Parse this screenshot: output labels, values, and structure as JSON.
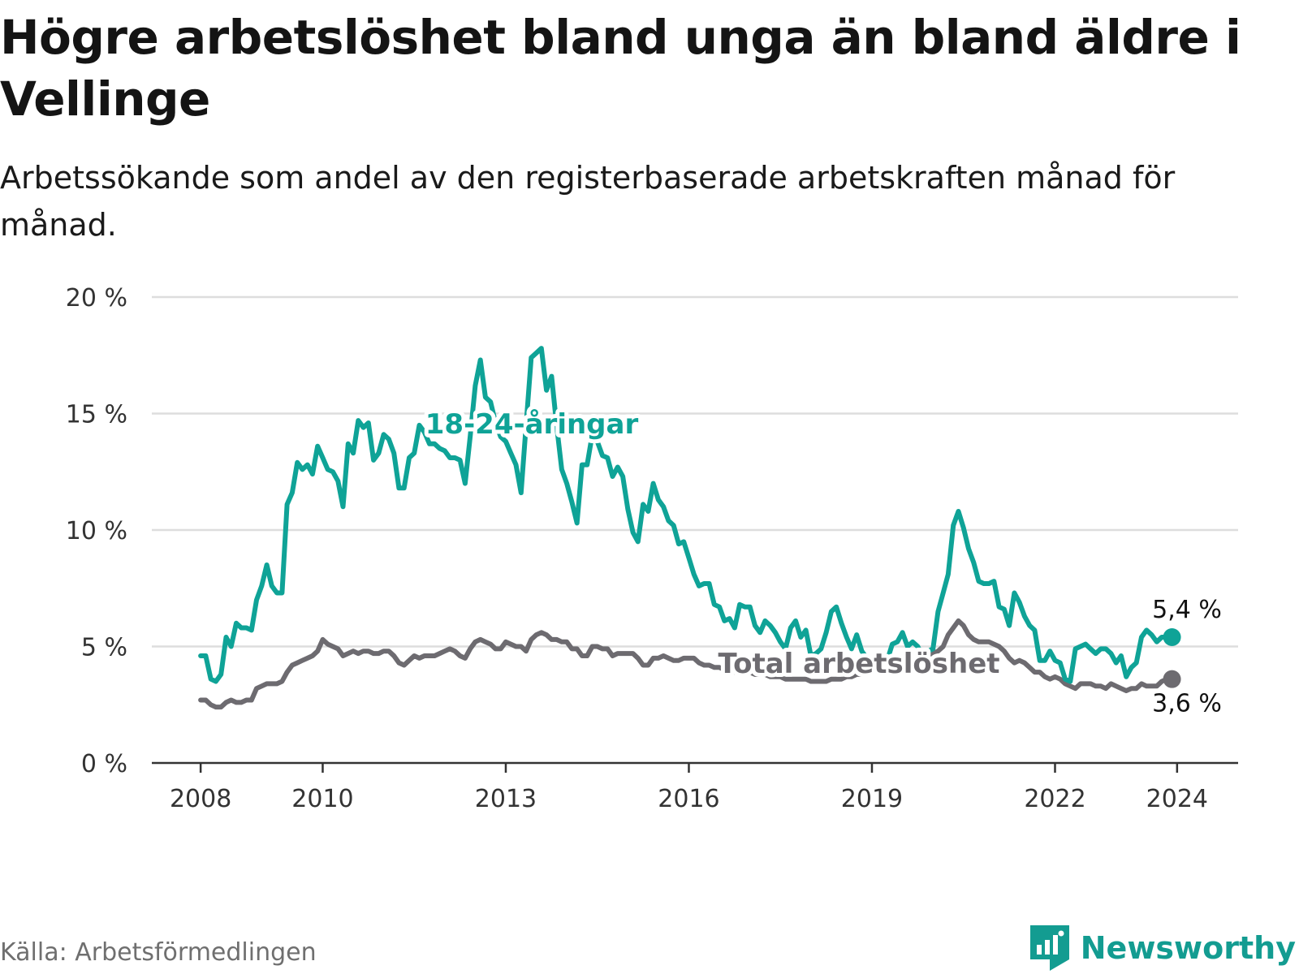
{
  "header": {
    "title": "Högre arbetslöshet bland unga än bland äldre i Vellinge",
    "subtitle": "Arbetssökande som andel av den registerbaserade arbetskraften månad för månad."
  },
  "footer": {
    "source": "Källa: Arbetsförmedlingen",
    "brand": "Newsworthy"
  },
  "colors": {
    "youth": "#0fa397",
    "total": "#6d6b70",
    "grid": "#dddddd",
    "axis": "#333333",
    "brand": "#139c91"
  },
  "chart_data": {
    "type": "line",
    "title": "Högre arbetslöshet bland unga än bland äldre i Vellinge",
    "xlabel": "",
    "ylabel": "",
    "x_start": 2008.0,
    "x_step_months": 1,
    "xlim": [
      2007.2,
      2025.0
    ],
    "ylim": [
      0,
      20
    ],
    "y_ticks": [
      0,
      5,
      10,
      15,
      20
    ],
    "y_tick_labels": [
      "0 %",
      "5 %",
      "10 %",
      "15 %",
      "20 %"
    ],
    "x_ticks": [
      2008,
      2010,
      2013,
      2016,
      2019,
      2022,
      2024
    ],
    "x_tick_labels": [
      "2008",
      "2010",
      "2013",
      "2016",
      "2019",
      "2022",
      "2024"
    ],
    "grid": true,
    "series": [
      {
        "name": "18-24-åringar",
        "label": "18-24-åringar",
        "color_key": "youth",
        "end_label": "5,4 %",
        "values": [
          4.6,
          4.6,
          3.6,
          3.5,
          3.8,
          5.4,
          5.0,
          6.0,
          5.8,
          5.8,
          5.7,
          7.0,
          7.6,
          8.5,
          7.6,
          7.3,
          7.3,
          11.1,
          11.6,
          12.9,
          12.6,
          12.8,
          12.4,
          13.6,
          13.1,
          12.6,
          12.5,
          12.1,
          11.0,
          13.7,
          13.3,
          14.7,
          14.4,
          14.6,
          13.0,
          13.3,
          14.1,
          13.9,
          13.3,
          11.8,
          11.8,
          13.1,
          13.3,
          14.5,
          14.2,
          13.7,
          13.7,
          13.5,
          13.4,
          13.1,
          13.1,
          13.0,
          12.0,
          14.0,
          16.2,
          17.3,
          15.7,
          15.5,
          14.6,
          14.0,
          13.8,
          13.3,
          12.8,
          11.6,
          14.5,
          17.4,
          17.6,
          17.8,
          16.0,
          16.6,
          14.5,
          12.6,
          12.0,
          11.2,
          10.3,
          12.8,
          12.8,
          14.1,
          13.8,
          13.2,
          13.1,
          12.3,
          12.7,
          12.3,
          10.9,
          9.9,
          9.5,
          11.1,
          10.8,
          12.0,
          11.3,
          11.0,
          10.4,
          10.2,
          9.4,
          9.5,
          8.8,
          8.1,
          7.6,
          7.7,
          7.7,
          6.8,
          6.7,
          6.1,
          6.2,
          5.8,
          6.8,
          6.7,
          6.7,
          5.9,
          5.6,
          6.1,
          5.9,
          5.6,
          5.2,
          4.9,
          5.8,
          6.1,
          5.4,
          5.7,
          4.6,
          4.7,
          4.9,
          5.6,
          6.5,
          6.7,
          6.0,
          5.4,
          4.9,
          5.5,
          4.8,
          4.5,
          4.5,
          4.6,
          4.5,
          4.4,
          5.1,
          5.2,
          5.6,
          5.0,
          5.2,
          5.0,
          4.6,
          4.8,
          4.9,
          6.5,
          7.3,
          8.1,
          10.2,
          10.8,
          10.1,
          9.2,
          8.6,
          7.8,
          7.7,
          7.7,
          7.8,
          6.7,
          6.6,
          5.9,
          7.3,
          6.9,
          6.3,
          5.9,
          5.7,
          4.4,
          4.4,
          4.8,
          4.4,
          4.3,
          3.6,
          3.5,
          4.9,
          5.0,
          5.1,
          4.9,
          4.7,
          4.9,
          4.9,
          4.7,
          4.3,
          4.6,
          3.7,
          4.1,
          4.3,
          5.4,
          5.7,
          5.5,
          5.2,
          5.4,
          5.4,
          5.4
        ]
      },
      {
        "name": "Total arbetslöshet",
        "label": "Total arbetslöshet",
        "color_key": "total",
        "end_label": "3,6 %",
        "values": [
          2.7,
          2.7,
          2.5,
          2.4,
          2.4,
          2.6,
          2.7,
          2.6,
          2.6,
          2.7,
          2.7,
          3.2,
          3.3,
          3.4,
          3.4,
          3.4,
          3.5,
          3.9,
          4.2,
          4.3,
          4.4,
          4.5,
          4.6,
          4.8,
          5.3,
          5.1,
          5.0,
          4.9,
          4.6,
          4.7,
          4.8,
          4.7,
          4.8,
          4.8,
          4.7,
          4.7,
          4.8,
          4.8,
          4.6,
          4.3,
          4.2,
          4.4,
          4.6,
          4.5,
          4.6,
          4.6,
          4.6,
          4.7,
          4.8,
          4.9,
          4.8,
          4.6,
          4.5,
          4.9,
          5.2,
          5.3,
          5.2,
          5.1,
          4.9,
          4.9,
          5.2,
          5.1,
          5.0,
          5.0,
          4.8,
          5.3,
          5.5,
          5.6,
          5.5,
          5.3,
          5.3,
          5.2,
          5.2,
          4.9,
          4.9,
          4.6,
          4.6,
          5.0,
          5.0,
          4.9,
          4.9,
          4.6,
          4.7,
          4.7,
          4.7,
          4.7,
          4.5,
          4.2,
          4.2,
          4.5,
          4.5,
          4.6,
          4.5,
          4.4,
          4.4,
          4.5,
          4.5,
          4.5,
          4.3,
          4.2,
          4.2,
          4.1,
          4.1,
          4.0,
          4.0,
          3.9,
          4.0,
          3.9,
          3.9,
          3.8,
          3.8,
          3.8,
          3.7,
          3.7,
          3.7,
          3.6,
          3.6,
          3.6,
          3.6,
          3.6,
          3.5,
          3.5,
          3.5,
          3.5,
          3.6,
          3.6,
          3.6,
          3.7,
          3.7,
          3.8,
          3.8,
          3.9,
          4.0,
          4.2,
          4.3,
          4.3,
          4.4,
          4.5,
          4.5,
          4.6,
          4.6,
          4.6,
          4.6,
          4.6,
          4.7,
          4.8,
          5.0,
          5.5,
          5.8,
          6.1,
          5.9,
          5.5,
          5.3,
          5.2,
          5.2,
          5.2,
          5.1,
          5.0,
          4.8,
          4.5,
          4.3,
          4.4,
          4.3,
          4.1,
          3.9,
          3.9,
          3.7,
          3.6,
          3.7,
          3.6,
          3.4,
          3.3,
          3.2,
          3.4,
          3.4,
          3.4,
          3.3,
          3.3,
          3.2,
          3.4,
          3.3,
          3.2,
          3.1,
          3.2,
          3.2,
          3.4,
          3.3,
          3.3,
          3.3,
          3.5,
          3.6,
          3.6
        ]
      }
    ]
  }
}
